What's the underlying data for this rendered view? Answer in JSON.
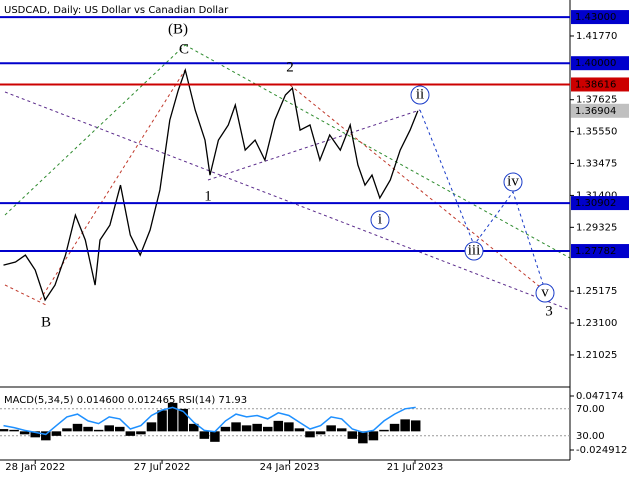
{
  "chart_data": {
    "type": "line",
    "title": "USDCAD, Daily:  US Dollar vs Canadian Dollar",
    "xlim": [
      -50,
      759
    ],
    "ylim": [
      1.1907,
      1.4411
    ],
    "xticks": [
      {
        "value": 0,
        "label": "28 Jan 2022"
      },
      {
        "value": 180,
        "label": "27 Jul 2022"
      },
      {
        "value": 361,
        "label": "24 Jan 2023"
      },
      {
        "value": 539,
        "label": "21 Jul 2023"
      }
    ],
    "yticks": [
      {
        "value": 1.4177,
        "label": "1.41770"
      },
      {
        "value": 1.37625,
        "label": "1.37625"
      },
      {
        "value": 1.3555,
        "label": "1.35550"
      },
      {
        "value": 1.33475,
        "label": "1.33475"
      },
      {
        "value": 1.314,
        "label": "1.31400"
      },
      {
        "value": 1.29325,
        "label": "1.29325"
      },
      {
        "value": 1.25175,
        "label": "1.25175"
      },
      {
        "value": 1.231,
        "label": "1.23100"
      },
      {
        "value": 1.21025,
        "label": "1.21025"
      }
    ],
    "levels": [
      {
        "value": 1.43,
        "label": "1.43000",
        "color": "#0000cc"
      },
      {
        "value": 1.4,
        "label": "1.40000",
        "color": "#0000cc"
      },
      {
        "value": 1.38616,
        "label": "1.38616",
        "color": "#cc0000"
      },
      {
        "value": 1.30902,
        "label": "1.30902",
        "color": "#0000cc"
      },
      {
        "value": 1.27782,
        "label": "1.27782",
        "color": "#0000cc"
      }
    ],
    "last_price": {
      "value": 1.36904,
      "label": "1.36904",
      "color": "#c0c0c0"
    },
    "series": [
      {
        "name": "USDCAD",
        "color": "#000000",
        "x": [
          -45,
          -28,
          -14,
          0,
          14,
          28,
          43,
          57,
          71,
          85,
          92,
          106,
          121,
          135,
          149,
          163,
          177,
          191,
          203,
          213,
          227,
          241,
          248,
          260,
          274,
          284,
          298,
          312,
          326,
          340,
          355,
          365,
          376,
          390,
          404,
          418,
          433,
          447,
          458,
          468,
          478,
          489,
          504,
          518,
          532,
          543
        ],
        "values": [
          1.2687,
          1.2707,
          1.2752,
          1.2655,
          1.246,
          1.2557,
          1.2752,
          1.3012,
          1.285,
          1.2557,
          1.285,
          1.2947,
          1.3207,
          1.2882,
          1.2752,
          1.2915,
          1.3175,
          1.363,
          1.3825,
          1.3955,
          1.3695,
          1.35,
          1.3272,
          1.35,
          1.3598,
          1.3728,
          1.3435,
          1.35,
          1.337,
          1.363,
          1.3793,
          1.3838,
          1.3565,
          1.3598,
          1.337,
          1.3533,
          1.3435,
          1.3598,
          1.3338,
          1.3207,
          1.3272,
          1.3123,
          1.324,
          1.3435,
          1.3565,
          1.369
        ]
      }
    ],
    "annotations": [
      {
        "text": "(B)",
        "color": "#2e8b2e"
      },
      {
        "text": "C",
        "color": "#c0392b"
      },
      {
        "text": "2",
        "color": "#c0392b"
      },
      {
        "text": "1",
        "color": "#c0392b"
      },
      {
        "text": "B",
        "color": "#c0392b"
      },
      {
        "text": "3",
        "color": "#c0392b"
      },
      {
        "text": "i",
        "color": "#1a3cc8"
      },
      {
        "text": "ii",
        "color": "#1a3cc8"
      },
      {
        "text": "iii",
        "color": "#1a3cc8"
      },
      {
        "text": "iv",
        "color": "#1a3cc8"
      },
      {
        "text": "v",
        "color": "#1a3cc8"
      }
    ],
    "indicator": {
      "label": "MACD(5,34,5) 0.014600 0.012465 RSI(14) 71.93",
      "x": [
        -45,
        -30,
        -15,
        0,
        15,
        30,
        45,
        60,
        75,
        90,
        105,
        120,
        135,
        150,
        165,
        180,
        195,
        210,
        225,
        240,
        255,
        270,
        285,
        300,
        315,
        330,
        345,
        360,
        375,
        390,
        405,
        420,
        435,
        450,
        465,
        480,
        495,
        510,
        525,
        540
      ],
      "macd_ylim": [
        -0.024912,
        0.047174
      ],
      "macd_yticks": [
        0.047174,
        -0.024912
      ],
      "macd_color": "#000000",
      "macd": [
        0.003,
        0.002,
        -0.004,
        -0.008,
        -0.012,
        -0.006,
        0.004,
        0.01,
        0.006,
        0.002,
        0.008,
        0.006,
        -0.006,
        -0.004,
        0.012,
        0.028,
        0.038,
        0.03,
        0.01,
        -0.01,
        -0.014,
        0.006,
        0.012,
        0.008,
        0.01,
        0.006,
        0.014,
        0.012,
        0.004,
        -0.008,
        -0.004,
        0.008,
        0.004,
        -0.01,
        -0.016,
        -0.012,
        0.002,
        0.01,
        0.016,
        0.0146
      ],
      "rsi_ylim": [
        0,
        100
      ],
      "rsi_yticks": [
        {
          "value": 70,
          "label": "70.00"
        },
        {
          "value": 30,
          "label": "30.00"
        }
      ],
      "rsi_color": "#1e90ff",
      "rsi": [
        45,
        42,
        38,
        35,
        32,
        45,
        58,
        62,
        52,
        48,
        58,
        55,
        40,
        45,
        60,
        68,
        72,
        66,
        50,
        38,
        36,
        52,
        62,
        58,
        60,
        55,
        64,
        60,
        50,
        40,
        45,
        58,
        55,
        40,
        35,
        38,
        52,
        62,
        70,
        71.93
      ]
    }
  }
}
